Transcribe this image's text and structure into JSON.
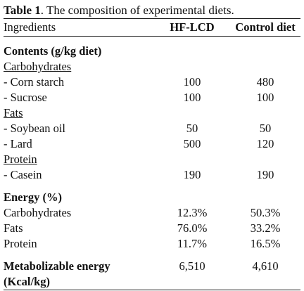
{
  "caption": {
    "label": "Table 1",
    "text": ". The composition of experimental diets."
  },
  "header": {
    "col0": "Ingredients",
    "col1": "HF-LCD",
    "col2": "Control diet"
  },
  "contents": {
    "title": "Contents (g/kg diet)",
    "groups": [
      {
        "name": "Carbohydrates",
        "items": [
          {
            "label": "- Corn starch",
            "hf": "100",
            "control": "480"
          },
          {
            "label": "- Sucrose",
            "hf": "100",
            "control": "100"
          }
        ]
      },
      {
        "name": "Fats",
        "items": [
          {
            "label": "- Soybean oil",
            "hf": "50",
            "control": "50"
          },
          {
            "label": "- Lard",
            "hf": "500",
            "control": "120"
          }
        ]
      },
      {
        "name": "Protein",
        "items": [
          {
            "label": "- Casein",
            "hf": "190",
            "control": "190"
          }
        ]
      }
    ]
  },
  "energy": {
    "title": "Energy (%)",
    "rows": [
      {
        "label": "Carbohydrates",
        "hf": "12.3%",
        "control": "50.3%"
      },
      {
        "label": "Fats",
        "hf": "76.0%",
        "control": "33.2%"
      },
      {
        "label": "Protein",
        "hf": "11.7%",
        "control": "16.5%"
      }
    ]
  },
  "metabolizable": {
    "label_line1": "Metabolizable energy",
    "label_line2": "(Kcal/kg)",
    "hf": "6,510",
    "control": "4,610"
  }
}
